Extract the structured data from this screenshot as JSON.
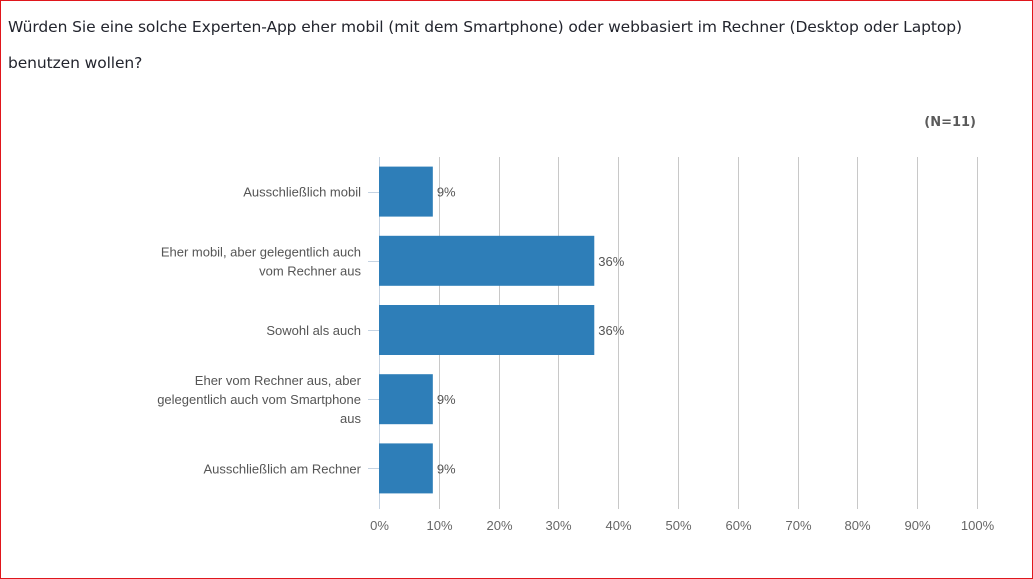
{
  "title": "Würden Sie eine solche Experten-App eher mobil (mit dem Smartphone) oder webbasiert im Rechner (Desktop oder Laptop) benutzen wollen?",
  "sample_size_label": "(N=11)",
  "colors": {
    "bar": "#2e7eb8",
    "grid": "#c8c8c8",
    "frame": "#e0161c"
  },
  "chart_data": {
    "type": "bar",
    "orientation": "horizontal",
    "title": "Würden Sie eine solche Experten-App eher mobil (mit dem Smartphone) oder webbasiert im Rechner (Desktop oder Laptop) benutzen wollen?",
    "annotation": "(N=11)",
    "categories": [
      [
        "Ausschließlich mobil"
      ],
      [
        "Eher mobil, aber gelegentlich auch",
        "vom Rechner aus"
      ],
      [
        "Sowohl als auch"
      ],
      [
        "Eher vom Rechner aus, aber",
        "gelegentlich auch vom Smartphone",
        "aus"
      ],
      [
        "Ausschließlich am Rechner"
      ]
    ],
    "values": [
      9,
      36,
      36,
      9,
      9
    ],
    "value_labels": [
      "9%",
      "36%",
      "36%",
      "9%",
      "9%"
    ],
    "xlabel": "",
    "ylabel": "",
    "xlim": [
      0,
      100
    ],
    "xticks": [
      0,
      10,
      20,
      30,
      40,
      50,
      60,
      70,
      80,
      90,
      100
    ],
    "xtick_labels": [
      "0%",
      "10%",
      "20%",
      "30%",
      "40%",
      "50%",
      "60%",
      "70%",
      "80%",
      "90%",
      "100%"
    ],
    "grid": "vertical",
    "legend": "none"
  }
}
